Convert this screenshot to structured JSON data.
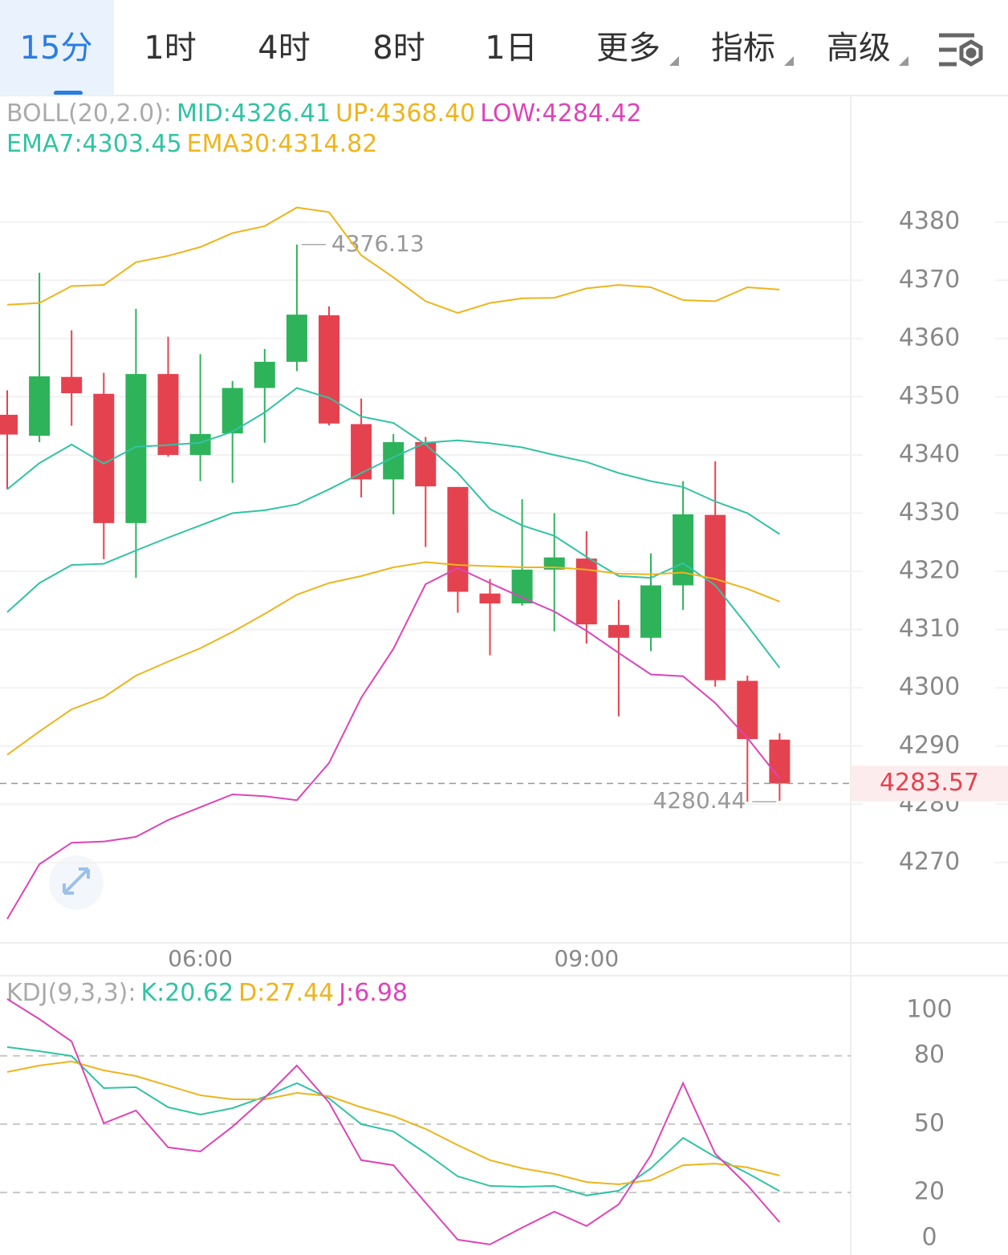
{
  "tabs": [
    "15分",
    "1时",
    "4时",
    "8时",
    "1日",
    "更多",
    "指标",
    "高级"
  ],
  "chart_data": [
    {
      "type": "candlestick",
      "legend_title": "BOLL(20,2.0):",
      "categories": [
        null,
        null,
        null,
        null,
        null,
        null,
        "06:00",
        null,
        null,
        null,
        null,
        null,
        null,
        null,
        null,
        null,
        null,
        null,
        "09:00",
        null,
        null,
        null,
        null,
        null,
        null
      ],
      "open": [
        4346.9,
        4343.3,
        4353.4,
        4350.5,
        4328.3,
        4353.9,
        4340.0,
        4343.7,
        4351.5,
        4356.0,
        4364.0,
        4345.3,
        4335.8,
        4342.2,
        4334.5,
        4316.2,
        4314.5,
        4320.3,
        4322.2,
        4310.8,
        4308.6,
        4317.6,
        4329.7,
        4301.2,
        4291.1
      ],
      "high": [
        4351.1,
        4371.3,
        4361.4,
        4354.1,
        4365.1,
        4360.3,
        4357.3,
        4352.7,
        4358.2,
        4376.13,
        4365.5,
        4349.7,
        4343.6,
        4343.1,
        4334.5,
        4318.7,
        4332.4,
        4330.0,
        4326.9,
        4315.1,
        4323.1,
        4335.5,
        4338.9,
        4302.1,
        4292.2
      ],
      "low": [
        4334.1,
        4342.2,
        4345.0,
        4322.1,
        4318.9,
        4339.7,
        4335.5,
        4335.2,
        4342.1,
        4354.4,
        4345.1,
        4332.7,
        4329.8,
        4324.2,
        4312.9,
        4305.6,
        4314.1,
        4309.7,
        4307.6,
        4295.1,
        4306.3,
        4313.4,
        4300.2,
        4280.44,
        4280.6
      ],
      "close": [
        4343.5,
        4353.5,
        4350.6,
        4328.3,
        4353.9,
        4340.0,
        4343.6,
        4351.5,
        4356.0,
        4364.1,
        4345.4,
        4335.8,
        4342.2,
        4334.6,
        4316.5,
        4314.5,
        4320.3,
        4322.4,
        4310.9,
        4308.6,
        4317.6,
        4329.8,
        4301.3,
        4291.2,
        4283.57
      ],
      "up_color": "#2eb35b",
      "down_color": "#e5424f",
      "series": [
        {
          "name": "MID:4326.41",
          "color": "#32c3a4",
          "values": [
            4313.0,
            4318.0,
            4321.1,
            4321.3,
            4323.6,
            4325.8,
            4327.9,
            4330.0,
            4330.5,
            4331.5,
            4334.1,
            4336.9,
            4339.6,
            4342.1,
            4342.5,
            4342.0,
            4341.3,
            4340.0,
            4338.8,
            4336.9,
            4335.5,
            4334.5,
            4332.0,
            4330.0,
            4326.41
          ]
        },
        {
          "name": "UP:4368.40",
          "color": "#eeb41c",
          "values": [
            4365.8,
            4366.1,
            4369.0,
            4369.2,
            4373.1,
            4374.2,
            4375.7,
            4378.1,
            4379.3,
            4382.5,
            4381.7,
            4374.3,
            4370.5,
            4366.4,
            4364.4,
            4366.1,
            4366.9,
            4367.0,
            4368.6,
            4369.2,
            4368.8,
            4366.6,
            4366.4,
            4368.8,
            4368.4
          ]
        },
        {
          "name": "LOW:4284.42",
          "color": "#dd44b8",
          "values": [
            4260.3,
            4269.7,
            4273.4,
            4273.6,
            4274.4,
            4277.3,
            4279.5,
            4281.7,
            4281.4,
            4280.7,
            4287.1,
            4298.3,
            4306.7,
            4317.8,
            4320.6,
            4318.0,
            4315.5,
            4313.1,
            4309.8,
            4306.0,
            4302.3,
            4302.0,
            4297.4,
            4291.4,
            4284.42
          ]
        },
        {
          "name": "EMA7:4303.45",
          "color": "#32c3a4",
          "values": [
            4334.1,
            4338.6,
            4341.8,
            4338.5,
            4341.4,
            4341.7,
            4342.1,
            4344.0,
            4347.3,
            4351.5,
            4349.8,
            4346.6,
            4345.5,
            4341.8,
            4336.9,
            4330.7,
            4327.9,
            4326.1,
            4322.5,
            4319.2,
            4318.9,
            4321.4,
            4317.6,
            4310.7,
            4303.45
          ]
        },
        {
          "name": "EMA30:4314.82",
          "color": "#eeb41c",
          "values": [
            4288.5,
            4292.5,
            4296.3,
            4298.4,
            4302.1,
            4304.5,
            4306.8,
            4309.6,
            4312.7,
            4316.0,
            4318.0,
            4319.2,
            4320.7,
            4321.6,
            4321.1,
            4320.9,
            4320.7,
            4320.7,
            4320.3,
            4319.6,
            4319.5,
            4319.8,
            4318.7,
            4317.0,
            4314.82
          ]
        }
      ],
      "ylim": [
        4256.2,
        4401.6
      ],
      "yticks": [
        4270,
        4280,
        4290,
        4300,
        4310,
        4320,
        4330,
        4340,
        4350,
        4360,
        4370,
        4380
      ],
      "grid": "solid"
    },
    {
      "type": "line",
      "legend_title": "KDJ(9,3,3):",
      "series": [
        {
          "name": "K:20.62",
          "color": "#32c3a4",
          "values": [
            83.8,
            82.0,
            79.9,
            65.8,
            66.2,
            57.4,
            54.2,
            57.0,
            62.0,
            68.0,
            61.3,
            50.0,
            46.8,
            37.3,
            27.1,
            22.9,
            22.5,
            22.9,
            18.7,
            20.8,
            30.6,
            44.0,
            35.6,
            28.5,
            20.62
          ]
        },
        {
          "name": "D:27.44",
          "color": "#eeb41c",
          "values": [
            72.9,
            75.7,
            77.5,
            73.6,
            71.1,
            66.9,
            62.7,
            60.9,
            60.9,
            63.7,
            62.3,
            57.4,
            53.5,
            47.9,
            40.8,
            34.2,
            30.6,
            28.2,
            24.6,
            23.6,
            25.4,
            32.0,
            32.7,
            31.0,
            27.44
          ]
        },
        {
          "name": "J:6.98",
          "color": "#dd44b8",
          "values": [
            104.9,
            96.1,
            86.3,
            50.4,
            56.0,
            39.8,
            38.0,
            48.9,
            61.6,
            75.7,
            59.5,
            34.2,
            32.0,
            15.5,
            -0.7,
            -2.8,
            4.6,
            11.6,
            5.3,
            14.8,
            36.3,
            68.0,
            37.0,
            23.2,
            6.98
          ]
        }
      ],
      "ylim": [
        -6,
        114.4
      ],
      "yticks": [
        0,
        20,
        50,
        80,
        100
      ],
      "grid": "dashed"
    }
  ]
}
